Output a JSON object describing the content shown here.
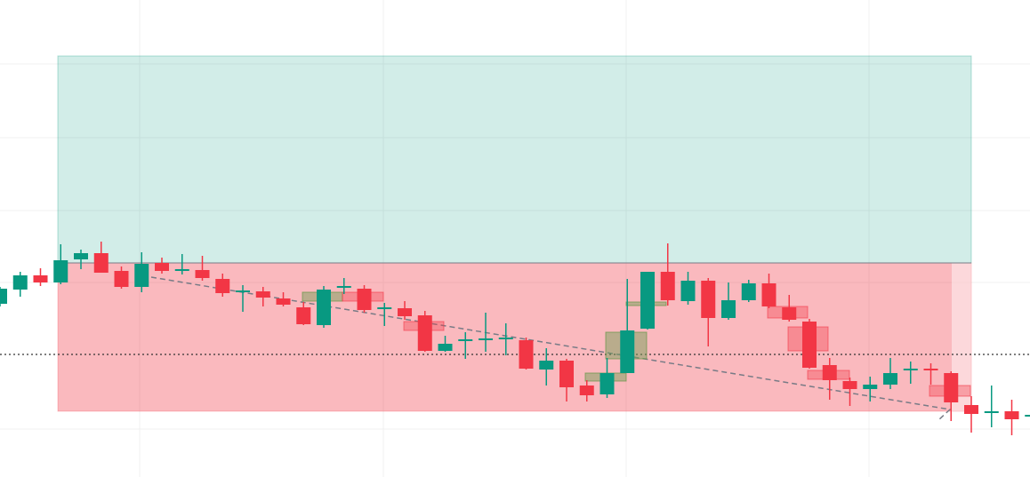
{
  "chart_data": {
    "type": "candlestick",
    "up_color": "#089981",
    "down_color": "#f23645",
    "ylim": [
      0,
      537
    ],
    "grid": true,
    "open": [
      195,
      211,
      227,
      219,
      245,
      252,
      232,
      214,
      241,
      232,
      233,
      223,
      208,
      209,
      201,
      191,
      171,
      213,
      212,
      189,
      190,
      182,
      142,
      153,
      154,
      155,
      154,
      121,
      131,
      103,
      93,
      117,
      167,
      231,
      198,
      221,
      179,
      199,
      218,
      191,
      175,
      126,
      108,
      99,
      104,
      120,
      122,
      117,
      81,
      72,
      74,
      68
    ],
    "high": [
      214,
      231,
      235,
      262,
      256,
      265,
      237,
      253,
      247,
      251,
      249,
      229,
      216,
      214,
      208,
      197,
      215,
      224,
      216,
      196,
      198,
      187,
      159,
      163,
      185,
      173,
      157,
      145,
      133,
      109,
      134,
      223,
      231,
      263,
      231,
      224,
      219,
      222,
      229,
      205,
      178,
      134,
      112,
      113,
      134,
      130,
      128,
      119,
      91,
      103,
      87,
      72
    ],
    "low": [
      192,
      203,
      215,
      217,
      234,
      230,
      212,
      208,
      229,
      228,
      221,
      203,
      186,
      192,
      192,
      171,
      168,
      206,
      185,
      170,
      177,
      141,
      141,
      133,
      141,
      137,
      121,
      103,
      85,
      85,
      89,
      117,
      166,
      193,
      194,
      147,
      177,
      197,
      190,
      175,
      122,
      87,
      80,
      85,
      99,
      105,
      104,
      63,
      50,
      56,
      47,
      66
    ],
    "close": [
      212,
      227,
      219,
      244,
      252,
      230,
      214,
      240,
      232,
      234,
      224,
      207,
      210,
      202,
      194,
      172,
      211,
      215,
      188,
      191,
      181,
      142,
      150,
      155,
      156,
      157,
      122,
      131,
      101,
      92,
      117,
      165,
      231,
      199,
      221,
      179,
      199,
      218,
      192,
      177,
      123,
      109,
      99,
      104,
      117,
      122,
      120,
      84,
      71,
      74,
      65,
      70
    ]
  }
}
